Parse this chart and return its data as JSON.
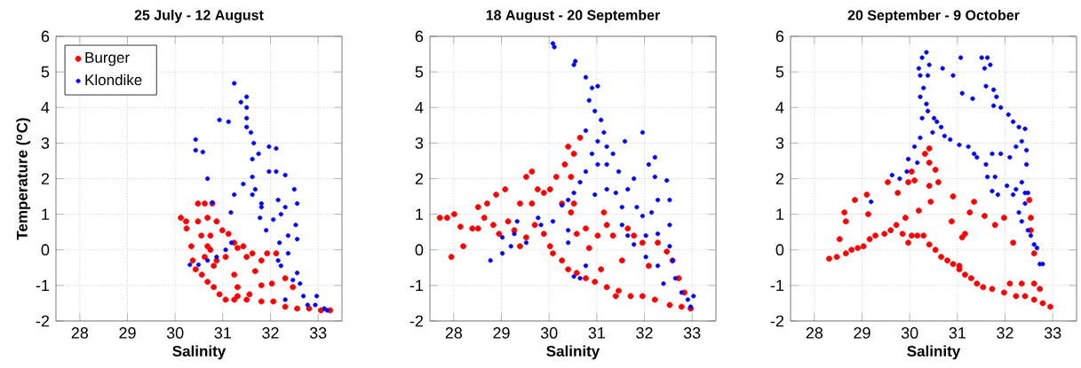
{
  "chart_data": [
    {
      "type": "scatter",
      "title": "25 July - 12 August",
      "xlabel": "Salinity",
      "ylabel": "Temperature ($^{o}$C)",
      "xlim": [
        27.5,
        33.5
      ],
      "ylim": [
        -2,
        6
      ],
      "xticks": [
        28,
        29,
        30,
        31,
        32,
        33
      ],
      "yticks": [
        -2,
        -1,
        0,
        1,
        2,
        3,
        4,
        5,
        6
      ],
      "grid": true,
      "legend": "top left",
      "marker": "circle",
      "series": [
        {
          "name": "Burger",
          "color": "#ff0000",
          "x": [
            30.12,
            30.23,
            30.24,
            30.34,
            30.48,
            30.62,
            30.78,
            30.48,
            30.68,
            30.87,
            30.55,
            30.68,
            30.37,
            30.43,
            30.56,
            30.68,
            30.81,
            30.93,
            31.06,
            31.24,
            31.5,
            31.31,
            31.56,
            31.81,
            32.06,
            32.31,
            32.56,
            32.81,
            33.06,
            33.25,
            30.99,
            31.12,
            31.24,
            31.43,
            31.62,
            31.81,
            31.93,
            32.12,
            32.31,
            32.47,
            30.87,
            31.06,
            31.31,
            31.5,
            31.68,
            31.81,
            32.03,
            30.62,
            30.74,
            30.81,
            31.24,
            30.74,
            31.31
          ],
          "values": [
            0.9,
            0.8,
            0.6,
            0.1,
            1.3,
            1.3,
            1.3,
            0.8,
            0.9,
            0.8,
            0.4,
            0.1,
            -0.3,
            -0.55,
            -0.7,
            -0.9,
            -1.05,
            -1.25,
            -1.4,
            -1.4,
            -1.4,
            -1.05,
            -1.25,
            -1.45,
            -1.45,
            -1.6,
            -1.65,
            -1.65,
            -1.7,
            -1.7,
            0.55,
            0.45,
            0.2,
            0.1,
            -0.1,
            -0.3,
            -0.1,
            -0.1,
            -0.8,
            -1.05,
            -0.3,
            -0.2,
            0.05,
            -0.2,
            -0.6,
            -1.0,
            -0.95,
            -0.2,
            0.0,
            -0.45,
            -0.7,
            0.4,
            -1.3
          ]
        },
        {
          "name": "Klondike",
          "color": "#0000ff",
          "x": [
            30.31,
            30.49,
            30.68,
            30.87,
            31.06,
            31.18,
            30.43,
            30.43,
            30.58,
            30.68,
            30.78,
            30.93,
            31.12,
            31.24,
            31.17,
            31.24,
            31.38,
            31.5,
            31.5,
            31.5,
            31.5,
            31.59,
            31.65,
            31.62,
            31.75,
            31.43,
            31.62,
            31.68,
            31.62,
            31.81,
            31.81,
            31.97,
            32.12,
            31.97,
            32.12,
            32.31,
            31.78,
            31.91,
            32.06,
            32.16,
            32.22,
            32.19,
            32.31,
            32.37,
            32.22,
            32.16,
            32.37,
            32.5,
            32.56,
            32.53,
            32.56,
            32.47,
            32.56,
            32.62,
            32.69,
            32.78,
            32.94,
            33.13,
            32.97,
            33.19,
            32.31
          ],
          "values": [
            -0.42,
            -0.42,
            -0.3,
            -0.2,
            0.0,
            0.2,
            3.1,
            2.8,
            2.75,
            2.0,
            1.33,
            3.65,
            3.6,
            1.55,
            1.05,
            4.68,
            4.15,
            4.3,
            4.0,
            3.7,
            3.45,
            3.3,
            3.0,
            2.55,
            2.7,
            1.85,
            2.05,
            1.7,
            1.55,
            1.3,
            1.2,
            2.2,
            2.2,
            2.9,
            2.85,
            2.1,
            0.9,
            0.55,
            0.85,
            1.4,
            1.0,
            0.2,
            1.2,
            0.4,
            -0.45,
            -0.3,
            -0.1,
            1.7,
            1.3,
            0.7,
            0.3,
            -0.85,
            -0.65,
            -0.95,
            -1.3,
            -1.55,
            -1.55,
            -1.65,
            -1.3,
            -1.7,
            -1.4
          ]
        }
      ]
    },
    {
      "type": "scatter",
      "title": "18 August - 20 September",
      "xlabel": "Salinity",
      "xlim": [
        27.5,
        33.5
      ],
      "ylim": [
        -2,
        6
      ],
      "xticks": [
        28,
        29,
        30,
        31,
        32,
        33
      ],
      "yticks": [
        -2,
        -1,
        0,
        1,
        2,
        3,
        4,
        5,
        6
      ],
      "grid": true,
      "marker": "circle",
      "series": [
        {
          "color": "#ff0000",
          "x": [
            27.71,
            27.86,
            27.95,
            28.01,
            28.2,
            28.14,
            28.39,
            28.51,
            28.51,
            28.7,
            28.89,
            29.08,
            28.64,
            28.83,
            28.95,
            29.14,
            29.27,
            29.39,
            29.52,
            29.64,
            29.39,
            29.64,
            29.89,
            29.76,
            30.02,
            29.52,
            29.7,
            29.89,
            30.02,
            30.08,
            30.27,
            30.4,
            30.58,
            30.77,
            30.96,
            31.21,
            31.46,
            31.71,
            31.96,
            32.22,
            32.53,
            32.78,
            32.97,
            30.4,
            30.52,
            30.65,
            30.33,
            30.46,
            30.15,
            30.27,
            30.46,
            30.52,
            30.58,
            30.77,
            30.84,
            31.02,
            31.15,
            31.21,
            31.34,
            31.53,
            31.65,
            31.78,
            31.96,
            32.09,
            32.28,
            32.47,
            32.59,
            32.72,
            32.84,
            31.09,
            31.4
          ],
          "values": [
            0.9,
            0.9,
            -0.2,
            1.0,
            0.1,
            0.65,
            0.6,
            0.6,
            1.2,
            1.3,
            1.55,
            1.7,
            0.9,
            0.7,
            0.45,
            0.8,
            0.55,
            0.1,
            2.05,
            2.2,
            1.3,
            1.3,
            1.6,
            1.7,
            1.7,
            0.35,
            0.7,
            0.45,
            0.1,
            -0.1,
            -0.3,
            -0.55,
            -0.65,
            -0.8,
            -0.9,
            -1.05,
            -1.15,
            -1.3,
            -1.3,
            -1.4,
            -1.55,
            -1.6,
            -1.65,
            2.9,
            2.7,
            3.15,
            2.4,
            2.05,
            2.05,
            1.3,
            1.05,
            1.3,
            0.45,
            0.6,
            0.05,
            0.4,
            1.05,
            0.7,
            0.4,
            -0.3,
            0.6,
            0.4,
            0.2,
            -0.45,
            0.2,
            -0.05,
            -0.3,
            -0.8,
            -1.2,
            -0.55,
            -1.3
          ]
        },
        {
          "color": "#0000ff",
          "x": [
            28.77,
            29.02,
            29.02,
            29.2,
            29.27,
            29.33,
            29.52,
            29.77,
            29.83,
            30.08,
            30.08,
            30.11,
            30.52,
            30.55,
            30.77,
            30.9,
            31.02,
            30.84,
            30.96,
            31.09,
            31.15,
            31.02,
            31.21,
            31.34,
            30.9,
            30.77,
            31.02,
            31.21,
            31.46,
            31.59,
            31.96,
            30.77,
            30.65,
            30.52,
            30.4,
            30.27,
            30.4,
            30.4,
            30.52,
            30.65,
            30.77,
            30.96,
            31.21,
            31.4,
            31.53,
            31.65,
            31.78,
            31.84,
            31.96,
            32.09,
            32.22,
            32.22,
            32.28,
            32.15,
            32.47,
            32.53,
            32.53,
            32.28,
            32.03,
            31.65,
            31.53,
            31.78,
            32.03,
            32.28,
            32.53,
            32.59,
            32.65,
            32.78,
            32.91,
            33.03,
            32.97,
            32.4
          ],
          "values": [
            -0.3,
            -0.1,
            0.35,
            0.1,
            0.45,
            0.8,
            0.2,
            0.9,
            0.7,
            0.8,
            5.8,
            5.7,
            5.2,
            5.3,
            4.85,
            4.55,
            4.6,
            4.2,
            3.9,
            3.65,
            3.3,
            3.05,
            2.9,
            2.7,
            2.7,
            3.35,
            2.4,
            2.4,
            2.2,
            3.05,
            3.3,
            2.2,
            1.9,
            1.6,
            1.4,
            1.25,
            0.55,
            0.2,
            -0.75,
            -0.8,
            -0.45,
            1.55,
            1.7,
            1.6,
            1.2,
            1.7,
            2.0,
            1.2,
            0.95,
            2.4,
            2.6,
            2.05,
            1.4,
            1.05,
            1.95,
            1.4,
            0.7,
            0.45,
            0.4,
            0.4,
            0.7,
            0.15,
            -0.2,
            -0.45,
            0.1,
            -0.3,
            -0.8,
            -1.2,
            -1.4,
            -1.3,
            -1.6,
            -0.95
          ]
        }
      ]
    },
    {
      "type": "scatter",
      "title": "20 September - 9 October",
      "xlabel": "Salinity",
      "xlim": [
        27.5,
        33.5
      ],
      "ylim": [
        -2,
        6
      ],
      "xticks": [
        28,
        29,
        30,
        31,
        32,
        33
      ],
      "yticks": [
        -2,
        -1,
        0,
        1,
        2,
        3,
        4,
        5,
        6
      ],
      "grid": true,
      "marker": "circle",
      "series": [
        {
          "color": "#ff0000",
          "x": [
            28.31,
            28.47,
            28.53,
            28.66,
            28.78,
            28.91,
            29.03,
            29.16,
            29.28,
            29.47,
            29.6,
            29.72,
            29.91,
            30.04,
            30.16,
            29.85,
            29.97,
            30.29,
            30.41,
            30.54,
            30.66,
            30.79,
            30.91,
            31.04,
            31.16,
            31.29,
            31.41,
            31.54,
            31.73,
            31.98,
            32.23,
            32.42,
            32.61,
            32.79,
            32.95,
            32.1,
            32.35,
            32.61,
            32.73,
            32.61,
            32.54,
            32.51,
            32.54,
            28.63,
            28.66,
            28.85,
            29.1,
            29.13,
            29.54,
            29.75,
            29.97,
            30.1,
            30.04,
            30.32,
            30.41,
            30.41,
            30.54,
            30.41,
            30.6,
            30.44,
            30.19,
            30.91,
            30.88,
            31.16,
            31.35,
            31.26,
            31.57,
            31.79,
            31.98,
            32.17,
            31.1,
            31.04
          ],
          "values": [
            -0.25,
            -0.2,
            0.3,
            -0.1,
            0.0,
            0.05,
            0.1,
            0.3,
            0.4,
            0.45,
            0.55,
            0.7,
            0.9,
            0.4,
            0.4,
            0.45,
            0.2,
            0.4,
            0.15,
            0.0,
            -0.2,
            -0.3,
            -0.4,
            -0.55,
            -0.7,
            -0.8,
            -0.95,
            -1.05,
            -1.1,
            -1.2,
            -1.3,
            -1.3,
            -1.4,
            -1.5,
            -1.6,
            -0.95,
            -0.95,
            -0.95,
            -1.1,
            -0.1,
            0.55,
            1.4,
            0.9,
            1.05,
            0.8,
            1.4,
            1.55,
            1.0,
            1.9,
            1.6,
            1.9,
            1.95,
            2.2,
            2.7,
            2.85,
            2.45,
            2.25,
            1.8,
            1.9,
            1.35,
            1.1,
            1.5,
            0.8,
            0.45,
            1.35,
            1.05,
            0.95,
            0.7,
            0.9,
            0.2,
            0.35,
            -0.45
          ]
        },
        {
          "color": "#0000ff",
          "x": [
            29.19,
            29.63,
            29.79,
            29.94,
            29.97,
            30.1,
            30.16,
            30.22,
            30.26,
            30.22,
            30.22,
            30.19,
            30.26,
            30.35,
            30.41,
            30.38,
            30.29,
            30.35,
            30.38,
            30.51,
            30.48,
            30.57,
            30.66,
            30.73,
            30.85,
            31.04,
            31.23,
            31.35,
            31.41,
            31.07,
            31.1,
            30.91,
            30.69,
            31.32,
            31.51,
            31.63,
            31.57,
            31.69,
            31.6,
            31.76,
            31.82,
            31.76,
            31.91,
            32.07,
            32.17,
            32.29,
            32.42,
            32.35,
            32.45,
            32.23,
            32.1,
            31.91,
            31.73,
            31.6,
            31.63,
            31.79,
            31.73,
            31.85,
            32.04,
            32.23,
            32.35,
            32.42,
            32.42,
            32.17,
            32.29,
            32.35,
            32.48,
            32.54,
            32.61,
            32.67,
            32.73,
            32.79,
            32.48,
            32.45
          ],
          "values": [
            1.35,
            2.1,
            2.0,
            2.2,
            2.55,
            2.9,
            2.45,
            3.15,
            3.7,
            4.3,
            4.9,
            5.1,
            5.4,
            5.55,
            5.2,
            4.9,
            4.55,
            4.1,
            3.9,
            3.7,
            3.3,
            3.6,
            3.45,
            3.2,
            3.1,
            2.95,
            2.9,
            2.7,
            2.6,
            5.4,
            4.4,
            4.9,
            5.1,
            4.25,
            5.4,
            5.4,
            5.1,
            5.2,
            4.6,
            4.5,
            4.3,
            4.05,
            4.0,
            3.8,
            3.6,
            3.45,
            3.4,
            3.05,
            2.8,
            2.9,
            2.6,
            2.7,
            2.7,
            2.4,
            2.05,
            2.05,
            1.65,
            1.55,
            1.8,
            1.7,
            1.9,
            1.6,
            1.3,
            1.55,
            1.05,
            0.8,
            0.55,
            0.4,
            0.15,
            0.05,
            -0.4,
            -0.4,
            1.6,
            2.4
          ]
        }
      ]
    }
  ]
}
